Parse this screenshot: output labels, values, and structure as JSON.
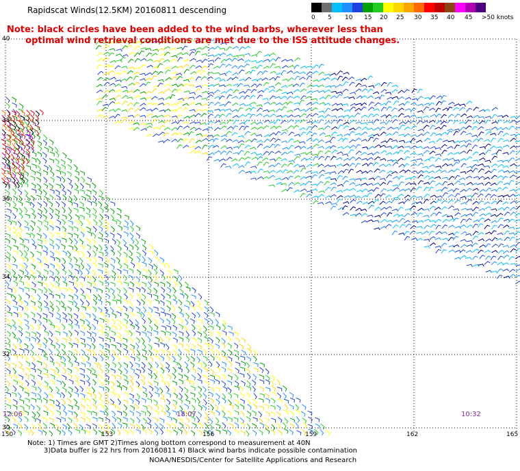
{
  "header": {
    "title": "Rapidscat Winds(12.5KM) 20160811 descending",
    "note_line1": "Note: black circles have been added to the wind barbs, wherever less than",
    "note_line2": "      optimal wind retrieval conditions are met due to the ISS attitude changes."
  },
  "color_scale": {
    "labels": [
      "0",
      "5",
      "10",
      "15",
      "20",
      "25",
      "30",
      "35",
      "40",
      "45",
      ">50 knots"
    ],
    "colors": [
      "#000000",
      "#6e6e6e",
      "#00bfff",
      "#1e8fff",
      "#1f3fe0",
      "#00a000",
      "#22cc22",
      "#ffff00",
      "#ffd700",
      "#ffa500",
      "#ff6a00",
      "#ff0000",
      "#c00000",
      "#8b4513",
      "#ff00ff",
      "#b000b0",
      "#4b0082"
    ]
  },
  "map": {
    "lat_labels": [
      "40",
      "38",
      "36",
      "34",
      "32",
      "30"
    ],
    "lon_labels": [
      "150",
      "153",
      "156",
      "159",
      "162",
      "165"
    ],
    "time_labels": [
      "12:06",
      "18:07",
      "10:32"
    ]
  },
  "footer": {
    "line1": "Note: 1) Times are GMT 2)Times along bottom correspond to measurement at 40N",
    "line2": "3)Data buffer is 22 hrs from 20160811 4) Black wind barbs indicate possible contamination",
    "line3": "NOAA/NESDIS/Center for Satellite Applications and Research"
  }
}
